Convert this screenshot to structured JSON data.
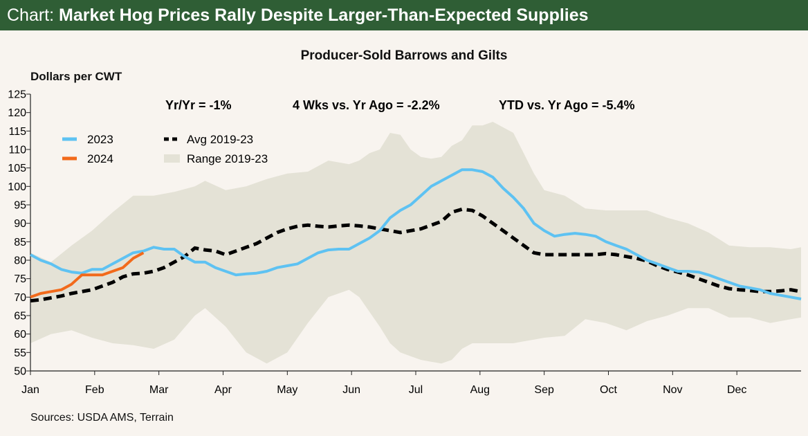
{
  "header": {
    "lead": "Chart:",
    "title": "Market Hog Prices Rally Despite Larger-Than-Expected Supplies"
  },
  "colors": {
    "header_bg": "#2f5e35",
    "series_2023": "#5ec2f2",
    "series_2024": "#f26a1b",
    "avg": "#000000",
    "range": "#e4e2d6"
  },
  "source": "Sources: USDA AMS, Terrain",
  "chart_data": {
    "type": "line",
    "title": "Producer-Sold Barrows and Gilts",
    "ylabel": "Dollars per CWT",
    "xlabel": "",
    "ylim": [
      50,
      125
    ],
    "yticks": [
      125,
      120,
      115,
      110,
      105,
      100,
      95,
      90,
      85,
      80,
      75,
      70,
      65,
      60,
      55,
      50
    ],
    "months": [
      "Jan",
      "Feb",
      "Mar",
      "Apr",
      "May",
      "Jun",
      "Jul",
      "Aug",
      "Sep",
      "Oct",
      "Nov",
      "Dec"
    ],
    "x_unit": "week of year (0 = start of Jan)",
    "stats": {
      "yoy": "Yr/Yr = -1%",
      "four_wk": "4 Wks vs. Yr Ago = -2.2%",
      "ytd": "YTD vs. Yr Ago = -5.4%"
    },
    "legend": {
      "s2023": "2023",
      "s2024": "2024",
      "avg": "Avg 2019-23",
      "range": "Range 2019-23"
    },
    "series": [
      {
        "name": "2023",
        "x": [
          0,
          2,
          4,
          6,
          8,
          10,
          12,
          14,
          16,
          18,
          20,
          22,
          24,
          26,
          28,
          30,
          32,
          34,
          36,
          38,
          40,
          42,
          44,
          46,
          48,
          50,
          52,
          54,
          56,
          58,
          60,
          62,
          64,
          66,
          68,
          70,
          72,
          74,
          76,
          78,
          80,
          82,
          84,
          86,
          88,
          90,
          92,
          94,
          96,
          98,
          100,
          102,
          104,
          106,
          108,
          110,
          112,
          114,
          116,
          118,
          120,
          122,
          124,
          126,
          128,
          130,
          132,
          134,
          136,
          138,
          140,
          142,
          144,
          146,
          148,
          150
        ],
        "values": [
          81.5,
          80,
          79,
          77.5,
          76.8,
          76.5,
          77.5,
          77.5,
          79,
          80.5,
          82,
          82.5,
          83.5,
          83,
          83,
          81,
          79.5,
          79.5,
          78,
          77,
          76,
          76.3,
          76.5,
          77,
          78,
          78.5,
          79,
          80.5,
          82,
          82.8,
          83,
          83,
          84.5,
          86,
          88,
          91.5,
          93.5,
          95,
          97.5,
          100,
          101.5,
          103,
          104.5,
          104.5,
          104,
          102.5,
          99.5,
          97,
          94,
          90,
          88,
          86.5,
          87,
          87.3,
          87,
          86.5,
          85,
          84,
          83,
          81.5,
          80,
          79,
          78,
          77,
          77,
          76.8,
          76,
          75,
          74,
          73,
          72.5,
          72,
          71,
          70.5,
          70,
          69.5
        ]
      },
      {
        "name": "2024",
        "x": [
          0,
          2,
          4,
          6,
          8,
          10,
          12,
          14,
          16,
          18,
          20,
          22
        ],
        "values": [
          70,
          71,
          71.5,
          72,
          73.5,
          76,
          76,
          76,
          77,
          78,
          80.5,
          82
        ]
      },
      {
        "name": "Avg 2019-23",
        "x": [
          0,
          2,
          4,
          6,
          8,
          10,
          12,
          14,
          16,
          18,
          20,
          22,
          24,
          26,
          28,
          30,
          32,
          34,
          36,
          38,
          40,
          42,
          44,
          46,
          48,
          50,
          52,
          54,
          56,
          58,
          60,
          62,
          64,
          66,
          68,
          70,
          72,
          74,
          76,
          78,
          80,
          82,
          84,
          86,
          88,
          90,
          92,
          94,
          96,
          98,
          100,
          102,
          104,
          106,
          108,
          110,
          112,
          114,
          116,
          118,
          120,
          122,
          124,
          126,
          128,
          130,
          132,
          134,
          136,
          138,
          140,
          142,
          144,
          146,
          148,
          150
        ],
        "values": [
          69,
          69.3,
          69.8,
          70.3,
          71,
          71.5,
          72,
          73,
          74,
          75.5,
          76.3,
          76.5,
          77,
          78,
          79.5,
          81,
          83.3,
          82.8,
          82.5,
          81.5,
          82.5,
          83.5,
          84.5,
          86,
          87.5,
          88.5,
          89.2,
          89.5,
          89.2,
          89,
          89.3,
          89.5,
          89.3,
          89,
          88.5,
          88,
          87.5,
          88,
          88.5,
          89.5,
          90.5,
          93,
          93.8,
          93.5,
          92,
          90,
          88,
          86,
          84,
          82,
          81.5,
          81.5,
          81.5,
          81.5,
          81.5,
          81.5,
          81.8,
          81.5,
          81,
          80.5,
          79.8,
          78.5,
          77.5,
          76.8,
          76,
          75,
          74,
          73,
          72.3,
          72,
          71.8,
          71.5,
          71.5,
          71.7,
          72,
          71.5
        ]
      },
      {
        "name": "Range 2019-23",
        "x": [
          0,
          4,
          8,
          12,
          16,
          20,
          24,
          28,
          32,
          34,
          38,
          42,
          46,
          50,
          54,
          58,
          62,
          64,
          66,
          68,
          70,
          72,
          74,
          76,
          78,
          80,
          82,
          84,
          86,
          88,
          90,
          92,
          94,
          96,
          98,
          100,
          104,
          108,
          112,
          116,
          120,
          124,
          128,
          132,
          136,
          140,
          144,
          148,
          150
        ],
        "low": [
          57.5,
          60,
          61,
          59,
          57.5,
          57,
          56,
          58.5,
          65,
          67,
          62,
          55,
          52,
          55,
          63,
          70,
          72,
          70,
          66,
          62,
          57.5,
          55,
          54,
          53,
          52.5,
          52,
          53,
          56,
          57.5,
          57.5,
          57.5,
          57.5,
          57.5,
          58,
          58.5,
          59,
          59.5,
          64,
          63,
          61,
          63.5,
          65,
          67,
          67,
          64.5,
          64.5,
          63,
          64,
          64.5
        ],
        "high": [
          82,
          79.5,
          84,
          88,
          93,
          97.5,
          97.5,
          98.5,
          100,
          101.5,
          99,
          100,
          102,
          103.5,
          104,
          107,
          106,
          107,
          109,
          110,
          114.5,
          114,
          110,
          108,
          107.5,
          108,
          111,
          112.5,
          116.5,
          116.5,
          117.5,
          116,
          114.5,
          109,
          103.5,
          99,
          97.5,
          94,
          93.5,
          93.5,
          93.5,
          91.5,
          90,
          87.5,
          84,
          83.5,
          83.5,
          83,
          83.5
        ]
      }
    ]
  }
}
